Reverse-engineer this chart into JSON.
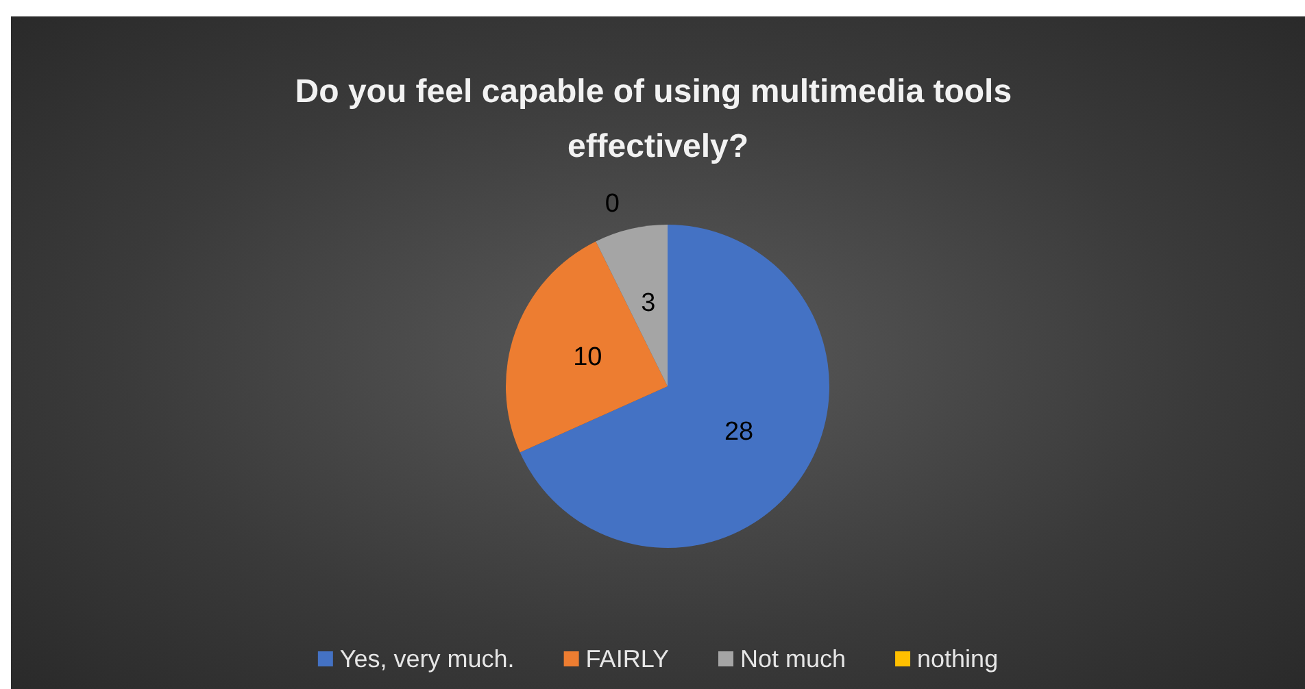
{
  "chart_data": {
    "type": "pie",
    "title": "Do you feel capable of using multimedia tools effectively?",
    "categories": [
      "Yes, very much.",
      "FAIRLY",
      "Not much",
      "nothing"
    ],
    "values": [
      28,
      10,
      3,
      0
    ],
    "colors": [
      "#4472c4",
      "#ed7d31",
      "#a5a5a5",
      "#ffc000"
    ],
    "value_labels": [
      "28",
      "10",
      "3",
      "0"
    ],
    "legend": "bottom"
  }
}
